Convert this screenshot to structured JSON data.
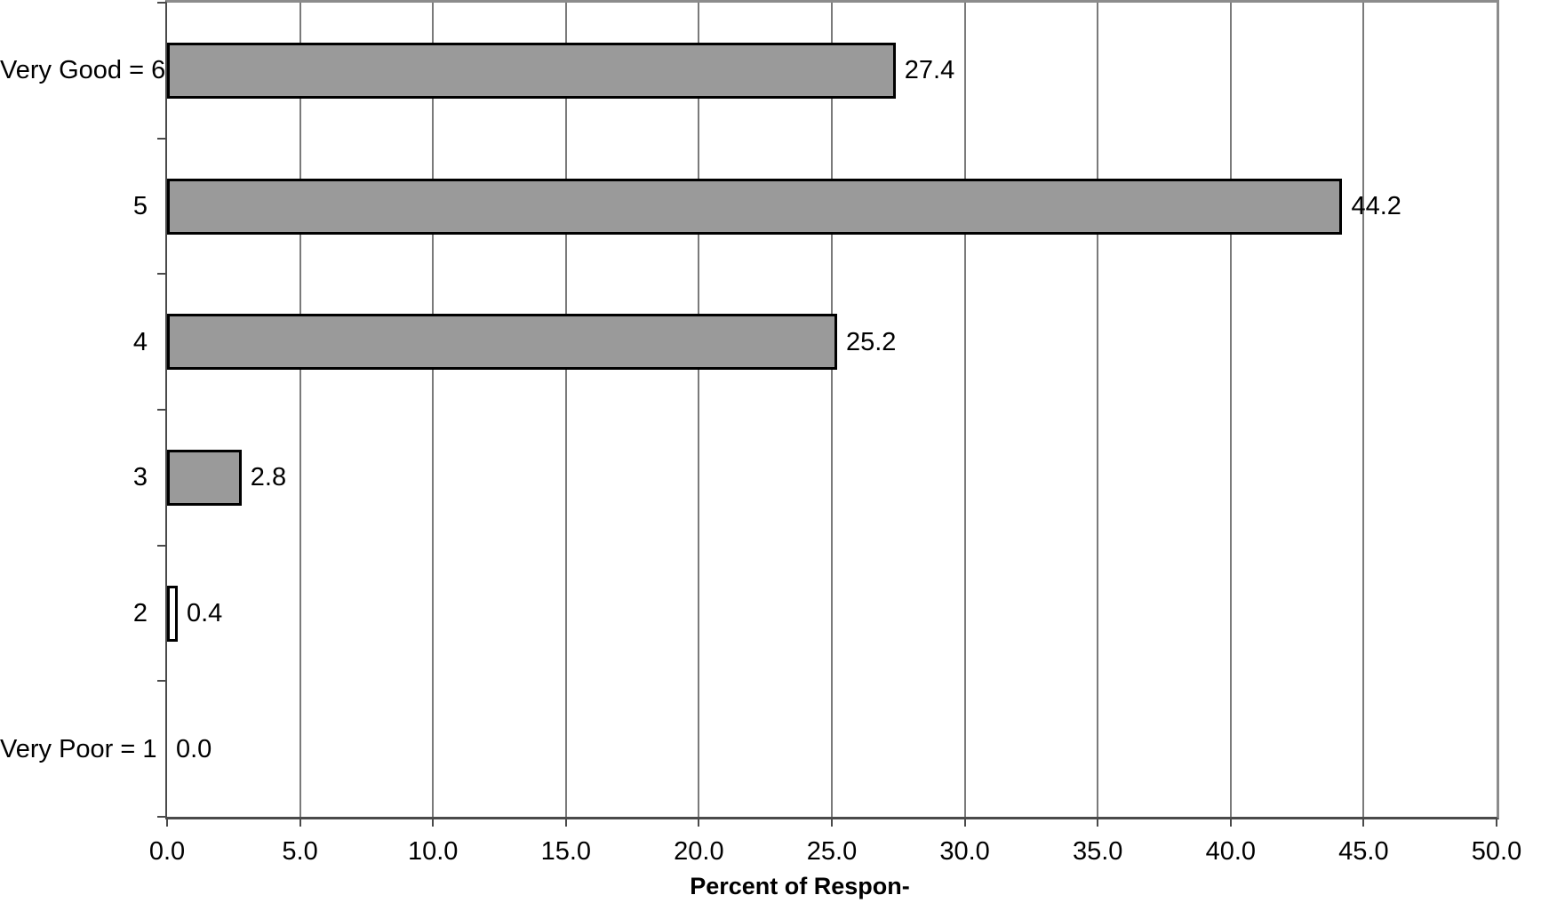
{
  "chart_data": {
    "type": "bar",
    "orientation": "horizontal",
    "title": "",
    "xlabel": "Percent of Respon-",
    "ylabel": "",
    "categories": [
      "Very Good = 6",
      "5",
      "4",
      "3",
      "2",
      "Very Poor = 1"
    ],
    "values": [
      27.4,
      44.2,
      25.2,
      2.8,
      0.4,
      0.0
    ],
    "data_labels": [
      "27.4",
      "44.2",
      "25.2",
      "2.8",
      "0.4",
      "0.0"
    ],
    "xlim": [
      0,
      50
    ],
    "x_tick_step": 5,
    "x_tick_labels": [
      "0.0",
      "5.0",
      "10.0",
      "15.0",
      "20.0",
      "25.0",
      "30.0",
      "35.0",
      "40.0",
      "45.0",
      "50.0"
    ],
    "grid": true,
    "legend": "none",
    "colors": {
      "bar_fill": "#9a9a9a",
      "bar_border": "#000000",
      "point_fills": [
        "#9a9a9a",
        "#9a9a9a",
        "#9a9a9a",
        "#9a9a9a",
        "#ffffff",
        "#9a9a9a"
      ],
      "gridline": "#7a7a7a",
      "axis_line": "#4a4a4a",
      "frame_line": "#8c8c8c",
      "background": "#ffffff",
      "text": "#000000"
    }
  }
}
